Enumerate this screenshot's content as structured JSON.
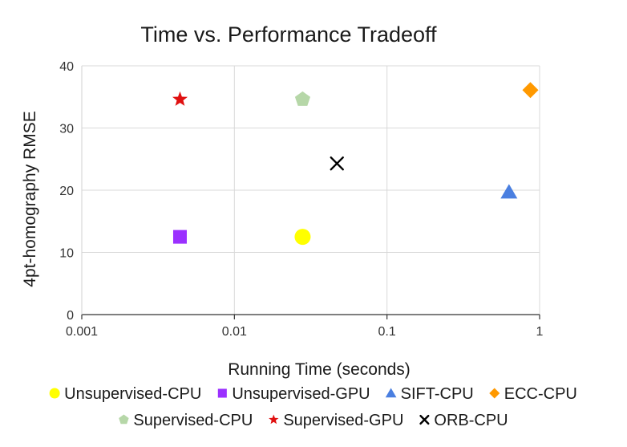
{
  "chart_data": {
    "type": "scatter",
    "title": "Time vs. Performance Tradeoff",
    "xlabel": "Running Time (seconds)",
    "ylabel": "4pt-homography RMSE",
    "x_scale": "log",
    "xlim": [
      0.001,
      1
    ],
    "ylim": [
      0,
      40
    ],
    "x_ticks": [
      0.001,
      0.01,
      0.1,
      1
    ],
    "x_tick_labels": [
      "0.001",
      "0.01",
      "0.1",
      "1"
    ],
    "y_ticks": [
      0,
      10,
      20,
      30,
      40
    ],
    "y_tick_labels": [
      "0",
      "10",
      "20",
      "30",
      "40"
    ],
    "grid": true,
    "legend_position": "bottom",
    "series": [
      {
        "name": "Unsupervised-CPU",
        "marker": "circle",
        "color": "#ffff00",
        "x": 0.028,
        "y": 12.5
      },
      {
        "name": "Unsupervised-GPU",
        "marker": "square",
        "color": "#9b30ff",
        "x": 0.0044,
        "y": 12.5
      },
      {
        "name": "SIFT-CPU",
        "marker": "triangle",
        "color": "#4a7fe0",
        "x": 0.63,
        "y": 19.7
      },
      {
        "name": "ECC-CPU",
        "marker": "diamond",
        "color": "#ff9900",
        "x": 0.87,
        "y": 36.1
      },
      {
        "name": "Supervised-CPU",
        "marker": "pentagon",
        "color": "#b6d7a8",
        "x": 0.028,
        "y": 34.6
      },
      {
        "name": "Supervised-GPU",
        "marker": "star",
        "color": "#e01010",
        "x": 0.0044,
        "y": 34.6
      },
      {
        "name": "ORB-CPU",
        "marker": "x",
        "color": "#000000",
        "x": 0.047,
        "y": 24.3
      }
    ]
  }
}
